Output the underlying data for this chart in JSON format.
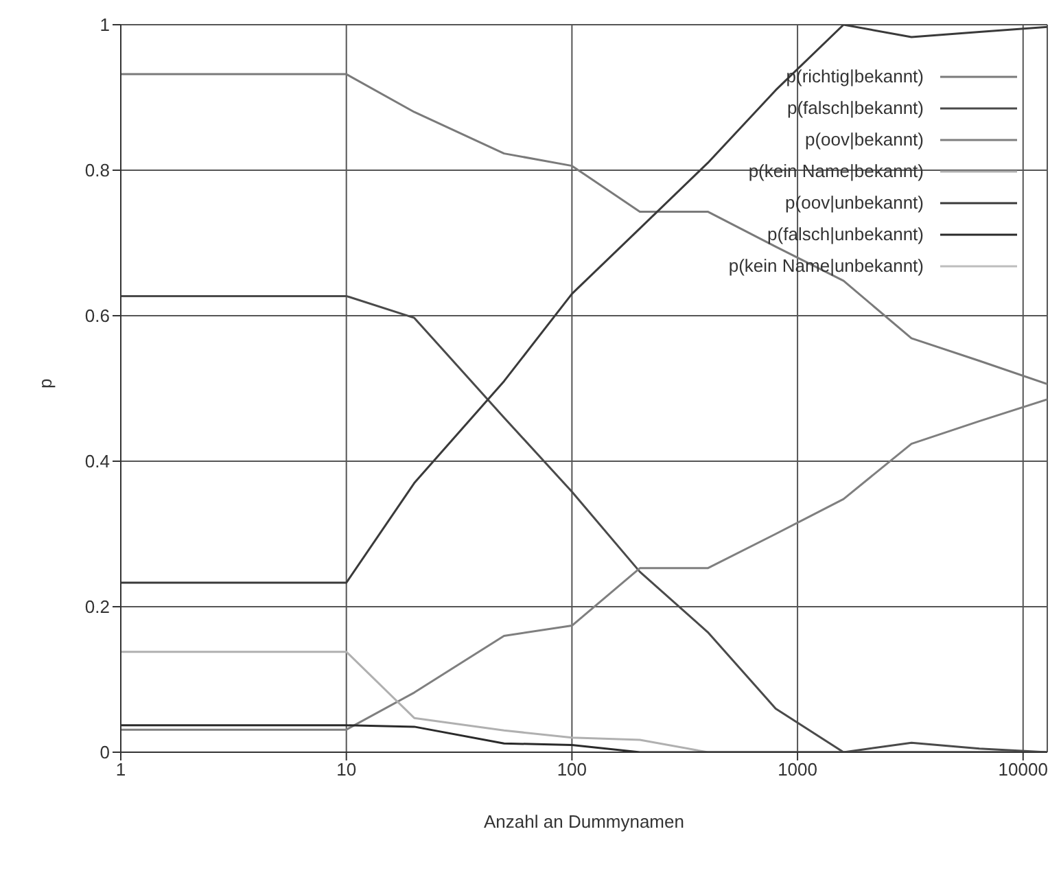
{
  "chart_data": {
    "type": "line",
    "xlabel": "Anzahl an Dummynamen",
    "ylabel": "p",
    "x": [
      1,
      10,
      20,
      50,
      100,
      200,
      400,
      800,
      1600,
      3200,
      6400,
      12800
    ],
    "xlim": [
      1,
      12800
    ],
    "xticks": [
      1,
      10,
      100,
      1000,
      10000
    ],
    "ylim": [
      0,
      1
    ],
    "yticks": [
      0,
      0.2,
      0.4,
      0.6,
      0.8,
      1
    ],
    "log": "x",
    "grid": true,
    "legend": "top right",
    "marker": "none",
    "line_style": "solid",
    "series": [
      {
        "name": "p(richtig|bekannt)",
        "color": "#7a7a7a",
        "values": [
          0.932,
          0.932,
          0.88,
          0.823,
          0.806,
          0.743,
          0.743,
          0.695,
          0.648,
          0.569,
          0.538,
          0.506
        ]
      },
      {
        "name": "p(falsch|bekannt)",
        "color": "#4a4a4a",
        "values": [
          0.627,
          0.627,
          0.597,
          0.46,
          0.358,
          0.248,
          0.165,
          0.06,
          0,
          0.013,
          0.005,
          0
        ]
      },
      {
        "name": "p(oov|bekannt)",
        "color": "#7f7f7f",
        "values": [
          0.031,
          0.031,
          0.082,
          0.16,
          0.174,
          0.253,
          0.253,
          0.3,
          0.348,
          0.424,
          0.455,
          0.485
        ]
      },
      {
        "name": "p(kein Name|bekannt)",
        "color": "#b0b0b0",
        "values": [
          0.138,
          0.138,
          0.047,
          0.03,
          0.02,
          0.017,
          0,
          0,
          0,
          0,
          0,
          0
        ]
      },
      {
        "name": "p(oov|unbekannt)",
        "color": "#3a3a3a",
        "values": [
          0.233,
          0.233,
          0.37,
          0.51,
          0.63,
          0.72,
          0.81,
          0.91,
          1,
          0.983,
          0.99,
          0.997
        ]
      },
      {
        "name": "p(falsch|unbekannt)",
        "color": "#2a2a2a",
        "values": [
          0.037,
          0.037,
          0.035,
          0.012,
          0.01,
          0,
          0,
          0,
          0,
          0,
          0,
          0
        ]
      },
      {
        "name": "p(kein Name|unbekannt)",
        "color": "#bdbdbd",
        "values": [
          null,
          null,
          null,
          null,
          null,
          null,
          null,
          null,
          null,
          null,
          null,
          null
        ]
      }
    ]
  }
}
